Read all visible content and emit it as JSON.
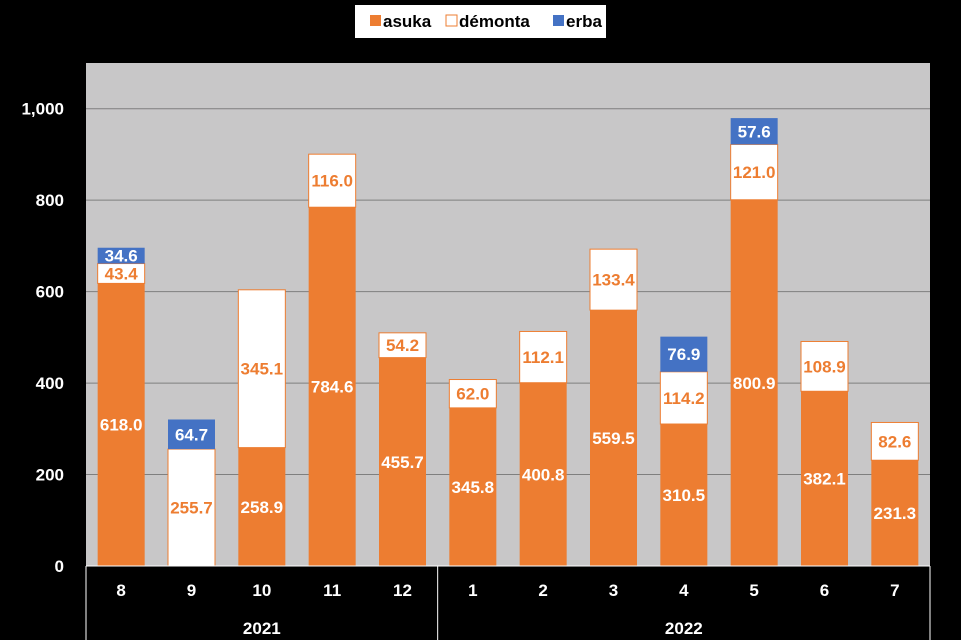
{
  "chart_data": {
    "type": "bar",
    "stacked": true,
    "categories": [
      "8",
      "9",
      "10",
      "11",
      "12",
      "1",
      "2",
      "3",
      "4",
      "5",
      "6",
      "7"
    ],
    "groups": [
      {
        "label": "2021",
        "count": 5
      },
      {
        "label": "2022",
        "count": 7
      }
    ],
    "series": [
      {
        "name": "asuka",
        "color": "#ED7D31",
        "values": [
          618.0,
          null,
          258.9,
          784.6,
          455.7,
          345.8,
          400.8,
          559.5,
          310.5,
          800.9,
          382.1,
          231.3
        ],
        "labels": [
          "618.0",
          "",
          "258.9",
          "784.6",
          "455.7",
          "345.8",
          "400.8",
          "559.5",
          "310.5",
          "800.9",
          "382.1",
          "231.3"
        ]
      },
      {
        "name": "démonta",
        "color": "#FFFFFF",
        "values": [
          43.4,
          255.7,
          345.1,
          116.0,
          54.2,
          62.0,
          112.1,
          133.4,
          114.2,
          121.0,
          108.9,
          82.6
        ],
        "labels": [
          "43.4",
          "255.7",
          "345.1",
          "116.0",
          "54.2",
          "62.0",
          "112.1",
          "133.4",
          "114.2",
          "121.0",
          "108.9",
          "82.6"
        ]
      },
      {
        "name": "erba",
        "color": "#4472C4",
        "values": [
          34.6,
          64.7,
          null,
          null,
          null,
          null,
          null,
          null,
          76.9,
          57.6,
          null,
          null
        ],
        "labels": [
          "34.6",
          "64.7",
          "",
          "",
          "",
          "",
          "",
          "",
          "76.9",
          "57.6",
          "",
          ""
        ]
      }
    ],
    "yticks": [
      "0",
      "200",
      "400",
      "600",
      "800",
      "1,000"
    ],
    "ylim": [
      0,
      1100
    ],
    "grid": true,
    "legend_position": "top",
    "plot_background": "#C8C7C8"
  }
}
